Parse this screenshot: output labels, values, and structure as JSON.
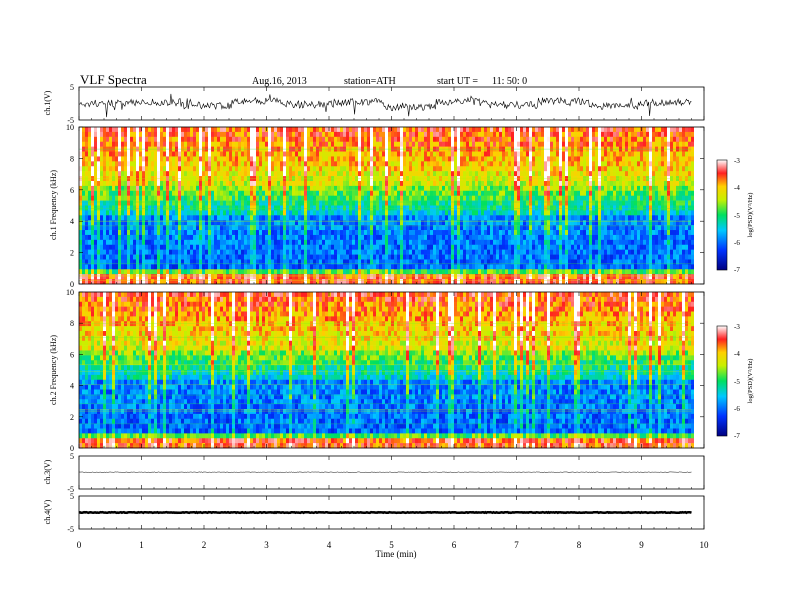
{
  "header": {
    "title": "VLF Spectra",
    "date": "Aug.16, 2013",
    "station": "station=ATH",
    "start": "start UT =",
    "start_time": "11: 50: 0"
  },
  "chart_data": [
    {
      "type": "line",
      "panel": "ch1-waveform",
      "ylabel": "ch.1(V)",
      "ylim": [
        -5,
        5
      ],
      "yticks": [
        "5",
        "-5"
      ],
      "series": [
        {
          "values": [
            0.0,
            0.4,
            -0.6,
            0.8,
            -0.3,
            0.5,
            -1.2,
            0.6,
            -0.4,
            0.7,
            -0.8,
            0.3
          ]
        }
      ]
    },
    {
      "type": "heatmap",
      "panel": "ch1-spectrogram",
      "ylabel": "ch.1 Frequency (kHz)",
      "ylim": [
        0,
        10
      ],
      "yticks": [
        "0",
        "2",
        "4",
        "6",
        "8",
        "10"
      ],
      "colorbar": {
        "label": "log(PSD)(V²/Hz)",
        "ticks": [
          "-3",
          "-4",
          "-5",
          "-6",
          "-7"
        ],
        "range": [
          -7,
          -3
        ]
      }
    },
    {
      "type": "heatmap",
      "panel": "ch2-spectrogram",
      "ylabel": "ch.2 Frequency (kHz)",
      "ylim": [
        0,
        10
      ],
      "yticks": [
        "0",
        "2",
        "4",
        "6",
        "8",
        "10"
      ],
      "colorbar": {
        "label": "log(PSD)(V²/Hz)",
        "ticks": [
          "-3",
          "-4",
          "-5",
          "-6",
          "-7"
        ],
        "range": [
          -7,
          -3
        ]
      }
    },
    {
      "type": "line",
      "panel": "ch3-waveform",
      "ylabel": "ch.3(V)",
      "ylim": [
        -5,
        5
      ],
      "yticks": [
        "5",
        "-5"
      ],
      "series": [
        {
          "values": [
            0.1,
            0.1,
            0.1,
            0.1,
            0.1,
            0.1,
            0.1,
            0.1,
            0.1,
            0.1
          ]
        }
      ]
    },
    {
      "type": "line",
      "panel": "ch4-waveform",
      "ylabel": "ch.4(V)",
      "ylim": [
        -5,
        5
      ],
      "yticks": [
        "5",
        "-5"
      ],
      "series": [
        {
          "values": [
            0,
            0,
            0,
            0,
            0,
            0,
            0,
            0,
            0,
            0
          ]
        }
      ]
    }
  ],
  "xaxis": {
    "label": "Time (min)",
    "ticks": [
      "0",
      "1",
      "2",
      "3",
      "4",
      "5",
      "6",
      "7",
      "8",
      "9",
      "10"
    ],
    "range": [
      0,
      10
    ],
    "data_end": 9.8
  }
}
